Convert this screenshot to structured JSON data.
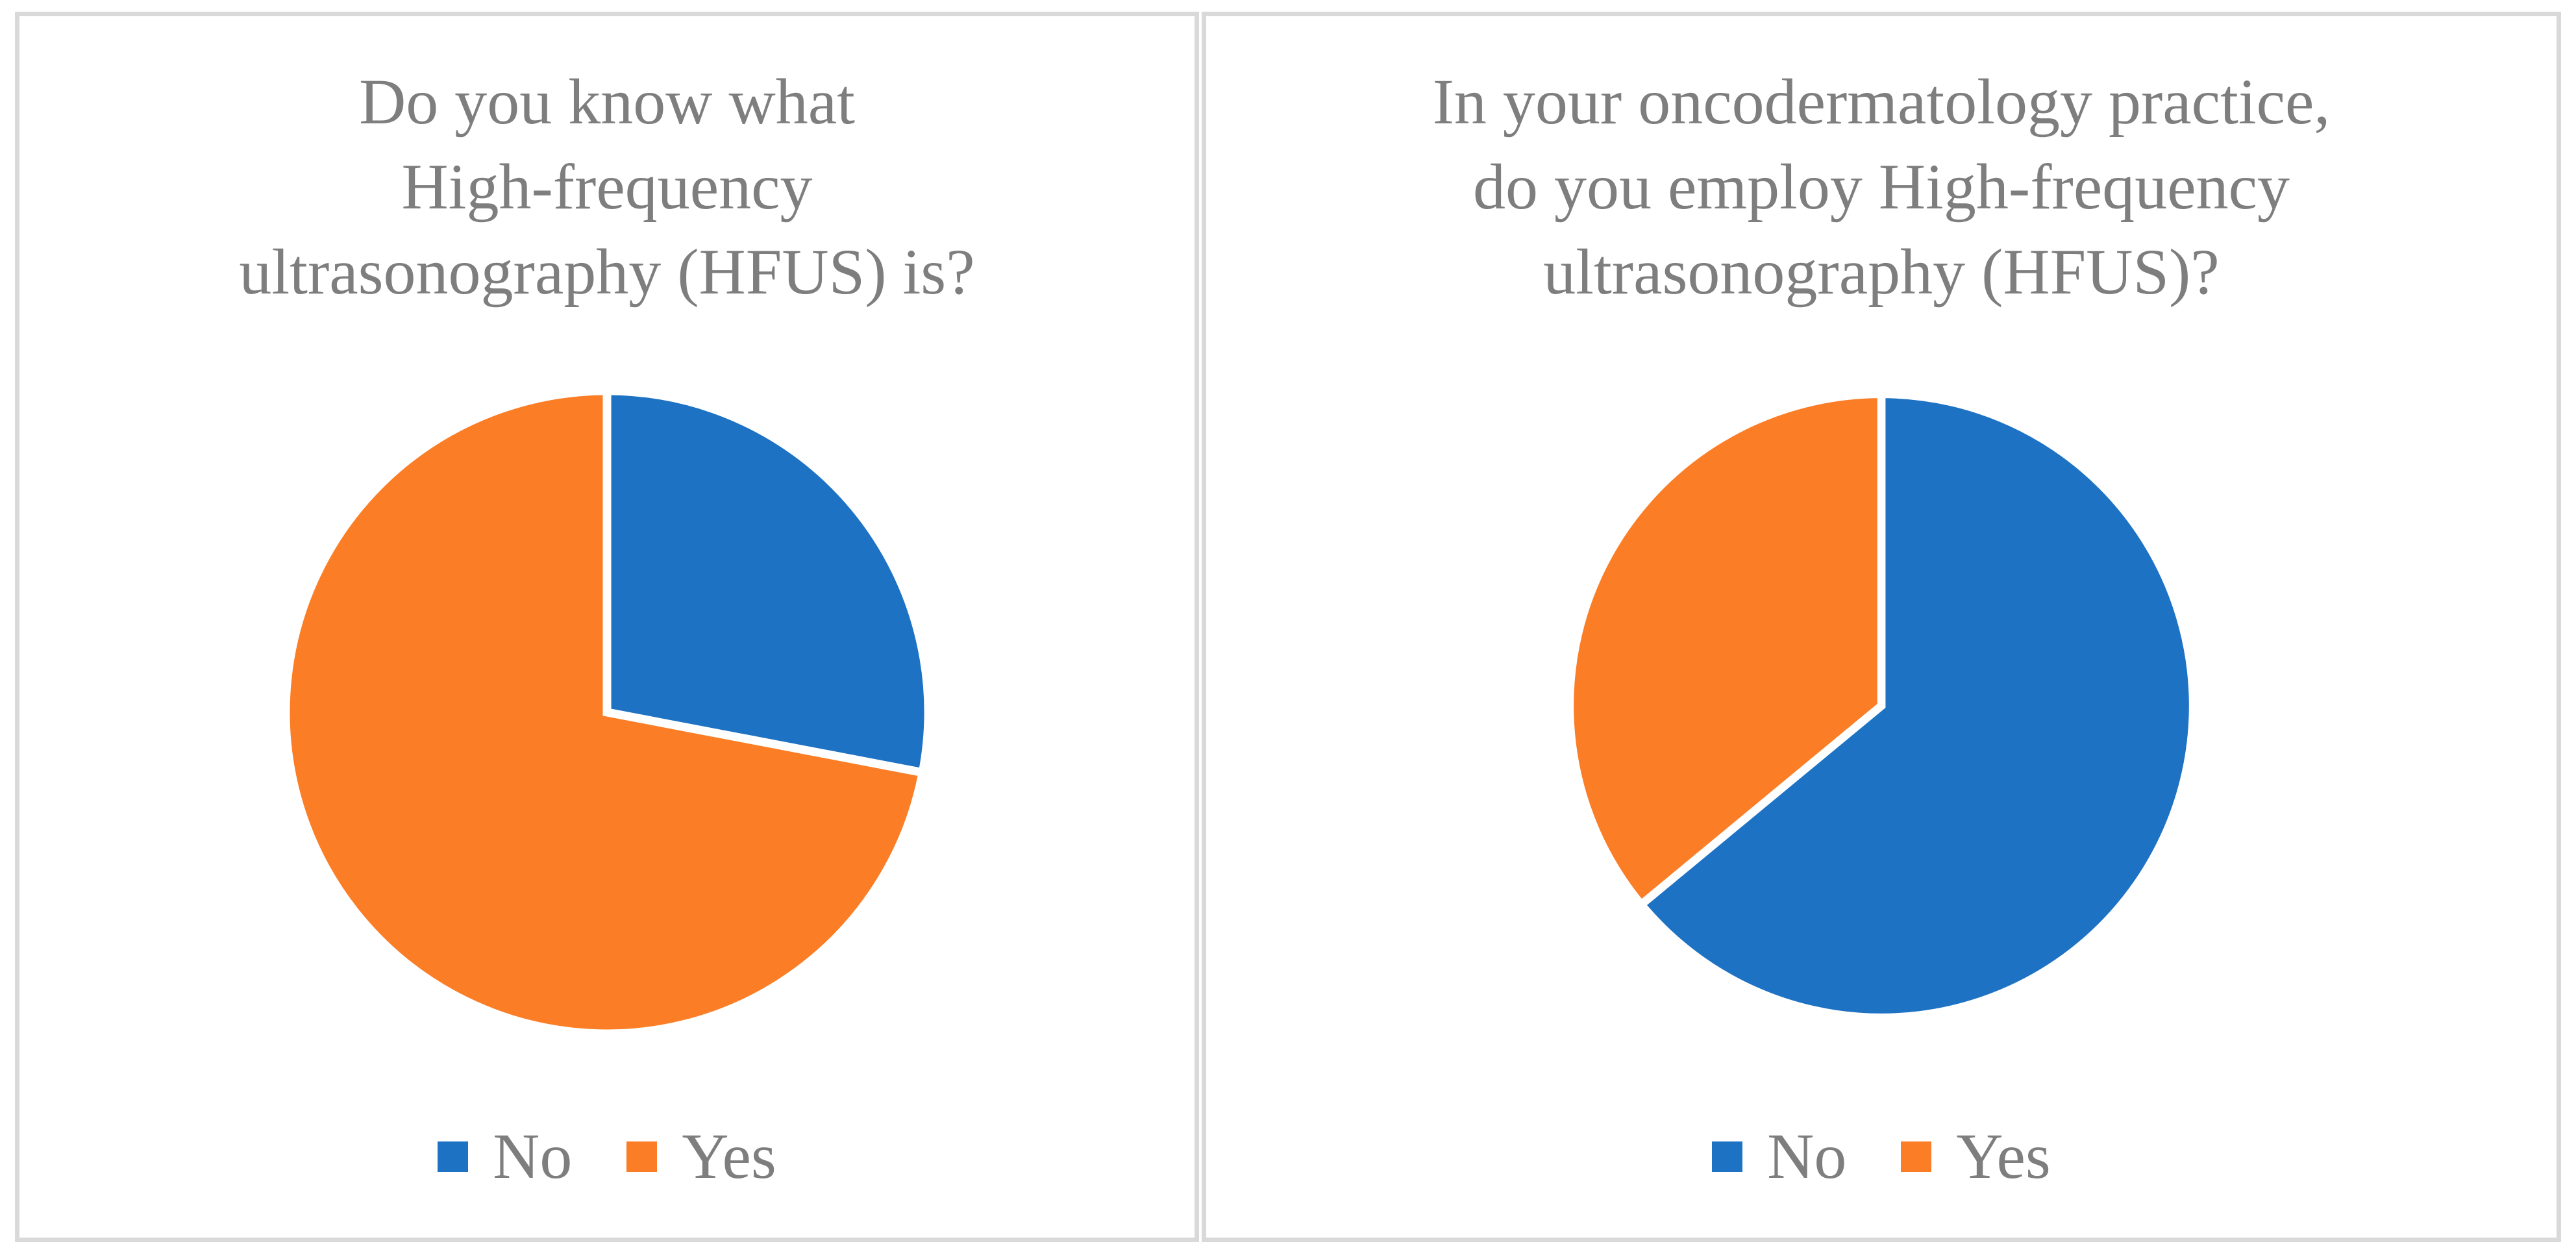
{
  "style": {
    "background": "#FFFFFF",
    "panel_border": "#D9D9D9",
    "text_color": "#7E7E7E",
    "slice_gap_color": "#FFFFFF"
  },
  "chart_data": [
    {
      "type": "pie",
      "title": "Do you know what High-frequency ultrasonography (HFUS) is?",
      "title_lines": [
        "Do you know what",
        "High-frequency",
        "ultrasonography (HFUS) is?"
      ],
      "categories": [
        "No",
        "Yes"
      ],
      "values": [
        28,
        72
      ],
      "unit": "percent (estimated from slice angles; chart shows no data labels)",
      "colors": [
        "#1E72C3",
        "#FB7D26"
      ],
      "start_angle_deg": 0,
      "direction": "clockwise",
      "legend_position": "bottom",
      "slice_border": "white"
    },
    {
      "type": "pie",
      "title": "In your oncodermatology practice, do you employ High-frequency ultrasonography (HFUS)?",
      "title_lines": [
        "In your oncodermatology practice,",
        "do you employ High-frequency",
        "ultrasonography (HFUS)?"
      ],
      "categories": [
        "No",
        "Yes"
      ],
      "values": [
        64,
        36
      ],
      "unit": "percent (estimated from slice angles; chart shows no data labels)",
      "colors": [
        "#1E72C3",
        "#FB7D26"
      ],
      "start_angle_deg": 0,
      "direction": "clockwise",
      "legend_position": "bottom",
      "slice_border": "white"
    }
  ]
}
